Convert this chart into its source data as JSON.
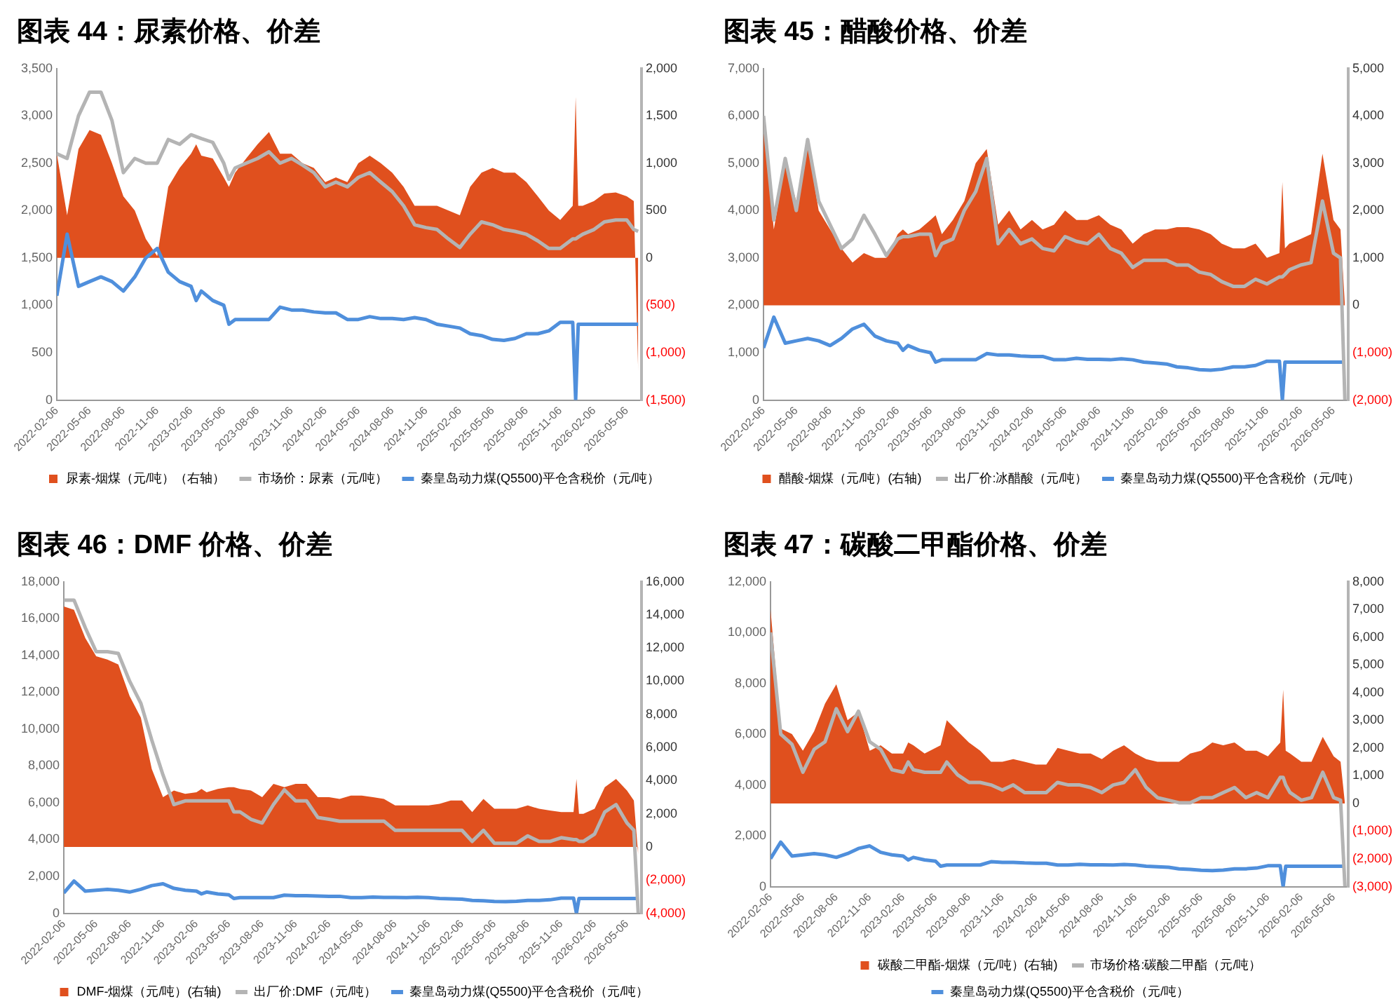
{
  "chart_data": [
    {
      "type": "line",
      "title": "图表 44：尿素价格、价差",
      "legend": "bottom",
      "x": [
        "2022-02-06",
        "2022-03-06",
        "2022-04-06",
        "2022-05-06",
        "2022-06-06",
        "2022-07-06",
        "2022-08-06",
        "2022-09-06",
        "2022-10-06",
        "2022-11-06",
        "2022-12-06",
        "2023-01-06",
        "2023-02-06",
        "2023-02-20",
        "2023-03-06",
        "2023-04-06",
        "2023-05-06",
        "2023-05-20",
        "2023-06-06",
        "2023-07-06",
        "2023-08-06",
        "2023-09-06",
        "2023-10-06",
        "2023-11-06",
        "2023-12-06",
        "2024-01-06",
        "2024-02-06",
        "2024-03-06",
        "2024-04-06",
        "2024-05-06",
        "2024-06-06",
        "2024-07-06",
        "2024-08-06",
        "2024-09-06",
        "2024-10-06",
        "2024-11-06",
        "2024-12-06",
        "2025-01-06",
        "2025-02-06",
        "2025-03-06",
        "2025-04-06",
        "2025-05-06",
        "2025-06-06",
        "2025-07-06",
        "2025-08-06",
        "2025-09-06",
        "2025-10-06",
        "2025-11-06",
        "2025-12-10",
        "2025-12-18",
        "2025-12-25",
        "2026-01-06",
        "2026-02-06",
        "2026-03-06",
        "2026-04-06",
        "2026-05-06",
        "2026-05-25",
        "2026-06-06"
      ],
      "xlim": [
        "2022-02-06",
        "2026-06-15"
      ],
      "xticks": [
        "2022-02-06",
        "2022-05-06",
        "2022-08-06",
        "2022-11-06",
        "2023-02-06",
        "2023-05-06",
        "2023-08-06",
        "2023-11-06",
        "2024-02-06",
        "2024-05-06",
        "2024-08-06",
        "2024-11-06",
        "2025-02-06",
        "2025-05-06",
        "2025-08-06",
        "2025-11-06",
        "2026-02-06",
        "2026-05-06"
      ],
      "ylim": [
        0,
        3500
      ],
      "yticks": [
        {
          "value": 0,
          "label": "0"
        },
        {
          "value": 500,
          "label": "500"
        },
        {
          "value": 1000,
          "label": "1,000"
        },
        {
          "value": 1500,
          "label": "1,500"
        },
        {
          "value": 2000,
          "label": "2,000"
        },
        {
          "value": 2500,
          "label": "2,500"
        },
        {
          "value": 3000,
          "label": "3,000"
        },
        {
          "value": 3500,
          "label": "3,500"
        }
      ],
      "y2lim": [
        -1500,
        2000
      ],
      "y2ticks": [
        {
          "value": -1500,
          "label": "(1,500)"
        },
        {
          "value": -1000,
          "label": "(1,000)"
        },
        {
          "value": -500,
          "label": "(500)"
        },
        {
          "value": 0,
          "label": "0"
        },
        {
          "value": 500,
          "label": "500"
        },
        {
          "value": 1000,
          "label": "1,000"
        },
        {
          "value": 1500,
          "label": "1,500"
        },
        {
          "value": 2000,
          "label": "2,000"
        }
      ],
      "series": [
        {
          "name": "尿素-烟煤（元/吨）（右轴）",
          "type": "area",
          "axis": "y2",
          "color": "#e0501e",
          "values": [
            1100,
            450,
            1150,
            1350,
            1300,
            1000,
            650,
            500,
            200,
            20,
            750,
            950,
            1100,
            1200,
            1080,
            1050,
            850,
            750,
            900,
            1050,
            1200,
            1330,
            1100,
            1100,
            1000,
            950,
            800,
            850,
            800,
            1000,
            1080,
            1000,
            900,
            750,
            550,
            550,
            550,
            500,
            450,
            750,
            900,
            950,
            900,
            900,
            800,
            650,
            500,
            400,
            550,
            1700,
            550,
            550,
            600,
            680,
            690,
            650,
            600,
            -1200
          ]
        },
        {
          "name": "市场价：尿素（元/吨）",
          "type": "line",
          "color": "#b4b4b4",
          "values": [
            2600,
            2550,
            3000,
            3250,
            3250,
            2950,
            2400,
            2550,
            2500,
            2500,
            2750,
            2700,
            2800,
            2780,
            2760,
            2720,
            2500,
            2330,
            2450,
            2500,
            2550,
            2620,
            2500,
            2550,
            2480,
            2400,
            2250,
            2300,
            2250,
            2350,
            2400,
            2300,
            2200,
            2050,
            1850,
            1820,
            1800,
            1700,
            1610,
            1750,
            1880,
            1850,
            1800,
            1780,
            1750,
            1680,
            1600,
            1600,
            1700,
            1700,
            1720,
            1750,
            1800,
            1880,
            1900,
            1900,
            1800,
            1780
          ]
        },
        {
          "name": "秦皇岛动力煤(Q5500)平仓含税价（元/吨）",
          "type": "line",
          "color": "#4f8fdc",
          "values": [
            1100,
            1750,
            1200,
            1250,
            1300,
            1250,
            1150,
            1300,
            1500,
            1600,
            1350,
            1250,
            1200,
            1050,
            1150,
            1050,
            1000,
            800,
            850,
            850,
            850,
            850,
            980,
            950,
            950,
            930,
            920,
            920,
            850,
            850,
            880,
            860,
            860,
            850,
            870,
            850,
            800,
            780,
            760,
            700,
            680,
            640,
            630,
            650,
            700,
            700,
            730,
            820,
            820,
            0,
            800,
            800,
            800,
            800,
            800,
            800,
            800,
            800
          ]
        }
      ]
    },
    {
      "type": "line",
      "title": "图表 45：醋酸价格、价差",
      "legend": "bottom",
      "x": [
        "2022-02-06",
        "2022-03-06",
        "2022-04-06",
        "2022-05-06",
        "2022-06-06",
        "2022-07-06",
        "2022-08-06",
        "2022-09-06",
        "2022-10-06",
        "2022-11-06",
        "2022-12-06",
        "2023-01-06",
        "2023-02-06",
        "2023-02-20",
        "2023-03-06",
        "2023-04-06",
        "2023-05-06",
        "2023-05-20",
        "2023-06-06",
        "2023-07-06",
        "2023-08-06",
        "2023-09-06",
        "2023-10-06",
        "2023-11-06",
        "2023-12-06",
        "2024-01-06",
        "2024-02-06",
        "2024-03-06",
        "2024-04-06",
        "2024-05-06",
        "2024-06-06",
        "2024-07-06",
        "2024-08-06",
        "2024-09-06",
        "2024-10-06",
        "2024-11-06",
        "2024-12-06",
        "2025-01-06",
        "2025-02-06",
        "2025-03-06",
        "2025-04-06",
        "2025-05-06",
        "2025-06-06",
        "2025-07-06",
        "2025-08-06",
        "2025-09-06",
        "2025-10-06",
        "2025-11-06",
        "2025-12-10",
        "2025-12-18",
        "2025-12-25",
        "2026-01-06",
        "2026-02-06",
        "2026-03-06",
        "2026-04-06",
        "2026-05-06",
        "2026-05-25",
        "2026-06-06"
      ],
      "xlim": [
        "2022-02-06",
        "2026-06-15"
      ],
      "xticks": [
        "2022-02-06",
        "2022-05-06",
        "2022-08-06",
        "2022-11-06",
        "2023-02-06",
        "2023-05-06",
        "2023-08-06",
        "2023-11-06",
        "2024-02-06",
        "2024-05-06",
        "2024-08-06",
        "2024-11-06",
        "2025-02-06",
        "2025-05-06",
        "2025-08-06",
        "2025-11-06",
        "2026-02-06",
        "2026-05-06"
      ],
      "ylim": [
        0,
        7000
      ],
      "yticks": [
        {
          "value": 0,
          "label": "0"
        },
        {
          "value": 1000,
          "label": "1,000"
        },
        {
          "value": 2000,
          "label": "2,000"
        },
        {
          "value": 3000,
          "label": "3,000"
        },
        {
          "value": 4000,
          "label": "4,000"
        },
        {
          "value": 5000,
          "label": "5,000"
        },
        {
          "value": 6000,
          "label": "6,000"
        },
        {
          "value": 7000,
          "label": "7,000"
        }
      ],
      "y2lim": [
        -2000,
        5000
      ],
      "y2ticks": [
        {
          "value": -2000,
          "label": "(2,000)"
        },
        {
          "value": -1000,
          "label": "(1,000)"
        },
        {
          "value": 0,
          "label": "0"
        },
        {
          "value": 1000,
          "label": "1,000"
        },
        {
          "value": 2000,
          "label": "2,000"
        },
        {
          "value": 3000,
          "label": "3,000"
        },
        {
          "value": 4000,
          "label": "4,000"
        },
        {
          "value": 5000,
          "label": "5,000"
        }
      ],
      "series": [
        {
          "name": "醋酸-烟煤（元/吨）(右轴)",
          "type": "area",
          "axis": "y2",
          "color": "#e0501e",
          "values": [
            3900,
            1600,
            3000,
            2200,
            3400,
            2000,
            1600,
            1200,
            900,
            1100,
            1000,
            1000,
            1500,
            1600,
            1500,
            1600,
            1800,
            1900,
            1500,
            1800,
            2200,
            3000,
            3300,
            1700,
            2000,
            1600,
            1800,
            1600,
            1700,
            2000,
            1800,
            1800,
            1900,
            1700,
            1600,
            1300,
            1500,
            1600,
            1600,
            1650,
            1650,
            1600,
            1500,
            1300,
            1200,
            1200,
            1300,
            1000,
            1100,
            2600,
            1200,
            1300,
            1400,
            1500,
            3200,
            1800,
            1600,
            0
          ]
        },
        {
          "name": "出厂价:冰醋酸（元/吨）",
          "type": "line",
          "color": "#b4b4b4",
          "values": [
            6000,
            3800,
            5100,
            4000,
            5500,
            4200,
            3700,
            3200,
            3400,
            3900,
            3500,
            3050,
            3400,
            3450,
            3450,
            3500,
            3500,
            3050,
            3300,
            3400,
            4000,
            4400,
            5100,
            3300,
            3600,
            3300,
            3400,
            3200,
            3150,
            3450,
            3350,
            3300,
            3500,
            3200,
            3100,
            2800,
            2950,
            2950,
            2950,
            2850,
            2850,
            2700,
            2650,
            2500,
            2400,
            2400,
            2550,
            2450,
            2600,
            2600,
            2650,
            2750,
            2850,
            2900,
            4200,
            3100,
            3000,
            0
          ]
        },
        {
          "name": "秦皇岛动力煤(Q5500)平仓含税价（元/吨）",
          "type": "line",
          "color": "#4f8fdc",
          "values": [
            1100,
            1750,
            1200,
            1250,
            1300,
            1250,
            1150,
            1300,
            1500,
            1600,
            1350,
            1250,
            1200,
            1050,
            1150,
            1050,
            1000,
            800,
            850,
            850,
            850,
            850,
            980,
            950,
            950,
            930,
            920,
            920,
            850,
            850,
            880,
            860,
            860,
            850,
            870,
            850,
            800,
            780,
            760,
            700,
            680,
            640,
            630,
            650,
            700,
            700,
            730,
            820,
            820,
            0,
            800,
            800,
            800,
            800,
            800,
            800,
            800,
            800
          ]
        }
      ]
    },
    {
      "type": "line",
      "title": "图表 46：DMF 价格、价差",
      "legend": "bottom",
      "x": [
        "2022-02-06",
        "2022-03-06",
        "2022-04-06",
        "2022-05-06",
        "2022-06-06",
        "2022-07-06",
        "2022-08-06",
        "2022-09-06",
        "2022-10-06",
        "2022-11-06",
        "2022-12-06",
        "2023-01-06",
        "2023-02-06",
        "2023-02-20",
        "2023-03-06",
        "2023-04-06",
        "2023-05-06",
        "2023-05-20",
        "2023-06-06",
        "2023-07-06",
        "2023-08-06",
        "2023-09-06",
        "2023-10-06",
        "2023-11-06",
        "2023-12-06",
        "2024-01-06",
        "2024-02-06",
        "2024-03-06",
        "2024-04-06",
        "2024-05-06",
        "2024-06-06",
        "2024-07-06",
        "2024-08-06",
        "2024-09-06",
        "2024-10-06",
        "2024-11-06",
        "2024-12-06",
        "2025-01-06",
        "2025-02-06",
        "2025-03-06",
        "2025-04-06",
        "2025-05-06",
        "2025-06-06",
        "2025-07-06",
        "2025-08-06",
        "2025-09-06",
        "2025-10-06",
        "2025-11-06",
        "2025-12-10",
        "2025-12-18",
        "2025-12-25",
        "2026-01-06",
        "2026-02-06",
        "2026-03-06",
        "2026-04-06",
        "2026-05-06",
        "2026-05-25",
        "2026-06-06"
      ],
      "xlim": [
        "2022-02-06",
        "2026-06-15"
      ],
      "xticks": [
        "2022-02-06",
        "2022-05-06",
        "2022-08-06",
        "2022-11-06",
        "2023-02-06",
        "2023-05-06",
        "2023-08-06",
        "2023-11-06",
        "2024-02-06",
        "2024-05-06",
        "2024-08-06",
        "2024-11-06",
        "2025-02-06",
        "2025-05-06",
        "2025-08-06",
        "2025-11-06",
        "2026-02-06",
        "2026-05-06"
      ],
      "ylim": [
        0,
        18000
      ],
      "yticks": [
        {
          "value": 0,
          "label": "0"
        },
        {
          "value": 2000,
          "label": "2,000"
        },
        {
          "value": 4000,
          "label": "4,000"
        },
        {
          "value": 6000,
          "label": "6,000"
        },
        {
          "value": 8000,
          "label": "8,000"
        },
        {
          "value": 10000,
          "label": "10,000"
        },
        {
          "value": 12000,
          "label": "12,000"
        },
        {
          "value": 14000,
          "label": "14,000"
        },
        {
          "value": 16000,
          "label": "16,000"
        },
        {
          "value": 18000,
          "label": "18,000"
        }
      ],
      "y2lim": [
        -4000,
        16000
      ],
      "y2ticks": [
        {
          "value": -4000,
          "label": "(4,000)"
        },
        {
          "value": -2000,
          "label": "(2,000)"
        },
        {
          "value": 0,
          "label": "0"
        },
        {
          "value": 2000,
          "label": "2,000"
        },
        {
          "value": 4000,
          "label": "4,000"
        },
        {
          "value": 6000,
          "label": "6,000"
        },
        {
          "value": 8000,
          "label": "8,000"
        },
        {
          "value": 10000,
          "label": "10,000"
        },
        {
          "value": 12000,
          "label": "12,000"
        },
        {
          "value": 14000,
          "label": "14,000"
        },
        {
          "value": 16000,
          "label": "16,000"
        }
      ],
      "series": [
        {
          "name": "DMF-烟煤（元/吨）(右轴)",
          "type": "area",
          "axis": "y2",
          "color": "#e0501e",
          "values": [
            14500,
            14300,
            12600,
            11500,
            11300,
            11000,
            9100,
            7800,
            4700,
            3000,
            3400,
            3200,
            3300,
            3500,
            3300,
            3500,
            3600,
            3600,
            3500,
            3400,
            3000,
            3800,
            3600,
            3800,
            3800,
            3000,
            3000,
            2900,
            3100,
            3100,
            3000,
            2900,
            2500,
            2500,
            2500,
            2500,
            2600,
            2800,
            2800,
            2100,
            2900,
            2300,
            2300,
            2300,
            2500,
            2300,
            2200,
            2100,
            2100,
            4100,
            2000,
            2000,
            2300,
            3600,
            4100,
            3400,
            2800,
            -500
          ]
        },
        {
          "name": "出厂价:DMF（元/吨）",
          "type": "line",
          "color": "#b4b4b4",
          "values": [
            17000,
            17000,
            15500,
            14200,
            14200,
            14100,
            12600,
            11400,
            9400,
            7500,
            5900,
            6100,
            6100,
            6100,
            6100,
            6100,
            6100,
            5500,
            5500,
            5100,
            4900,
            5900,
            6700,
            6100,
            6100,
            5200,
            5100,
            5000,
            5000,
            5000,
            5000,
            5000,
            4500,
            4500,
            4500,
            4500,
            4500,
            4500,
            4500,
            3900,
            4500,
            3800,
            3800,
            3800,
            4200,
            3900,
            3900,
            4100,
            4000,
            4000,
            3900,
            3900,
            4300,
            5500,
            5900,
            4900,
            4500,
            0
          ]
        },
        {
          "name": "秦皇岛动力煤(Q5500)平仓含税价（元/吨）",
          "type": "line",
          "color": "#4f8fdc",
          "values": [
            1100,
            1750,
            1200,
            1250,
            1300,
            1250,
            1150,
            1300,
            1500,
            1600,
            1350,
            1250,
            1200,
            1050,
            1150,
            1050,
            1000,
            800,
            850,
            850,
            850,
            850,
            980,
            950,
            950,
            930,
            920,
            920,
            850,
            850,
            880,
            860,
            860,
            850,
            870,
            850,
            800,
            780,
            760,
            700,
            680,
            640,
            630,
            650,
            700,
            700,
            730,
            820,
            820,
            0,
            800,
            800,
            800,
            800,
            800,
            800,
            800,
            800
          ]
        }
      ]
    },
    {
      "type": "line",
      "title": "图表 47：碳酸二甲酯价格、价差",
      "legend": "bottom",
      "x": [
        "2022-02-06",
        "2022-03-06",
        "2022-04-06",
        "2022-05-06",
        "2022-06-06",
        "2022-07-06",
        "2022-08-06",
        "2022-09-06",
        "2022-10-06",
        "2022-11-06",
        "2022-12-06",
        "2023-01-06",
        "2023-02-06",
        "2023-02-20",
        "2023-03-06",
        "2023-04-06",
        "2023-05-06",
        "2023-05-20",
        "2023-06-06",
        "2023-07-06",
        "2023-08-06",
        "2023-09-06",
        "2023-10-06",
        "2023-11-06",
        "2023-12-06",
        "2024-01-06",
        "2024-02-06",
        "2024-03-06",
        "2024-04-06",
        "2024-05-06",
        "2024-06-06",
        "2024-07-06",
        "2024-08-06",
        "2024-09-06",
        "2024-10-06",
        "2024-11-06",
        "2024-12-06",
        "2025-01-06",
        "2025-02-06",
        "2025-03-06",
        "2025-04-06",
        "2025-05-06",
        "2025-06-06",
        "2025-07-06",
        "2025-08-06",
        "2025-09-06",
        "2025-10-06",
        "2025-11-06",
        "2025-12-10",
        "2025-12-18",
        "2025-12-25",
        "2026-01-06",
        "2026-02-06",
        "2026-03-06",
        "2026-04-06",
        "2026-05-06",
        "2026-05-25",
        "2026-06-06"
      ],
      "xlim": [
        "2022-02-06",
        "2026-06-15"
      ],
      "xticks": [
        "2022-02-06",
        "2022-05-06",
        "2022-08-06",
        "2022-11-06",
        "2023-02-06",
        "2023-05-06",
        "2023-08-06",
        "2023-11-06",
        "2024-02-06",
        "2024-05-06",
        "2024-08-06",
        "2024-11-06",
        "2025-02-06",
        "2025-05-06",
        "2025-08-06",
        "2025-11-06",
        "2026-02-06",
        "2026-05-06"
      ],
      "ylim": [
        0,
        12000
      ],
      "yticks": [
        {
          "value": 0,
          "label": "0"
        },
        {
          "value": 2000,
          "label": "2,000"
        },
        {
          "value": 4000,
          "label": "4,000"
        },
        {
          "value": 6000,
          "label": "6,000"
        },
        {
          "value": 8000,
          "label": "8,000"
        },
        {
          "value": 10000,
          "label": "10,000"
        },
        {
          "value": 12000,
          "label": "12,000"
        }
      ],
      "y2lim": [
        -3000,
        8000
      ],
      "y2ticks": [
        {
          "value": -3000,
          "label": "(3,000)"
        },
        {
          "value": -2000,
          "label": "(2,000)"
        },
        {
          "value": -1000,
          "label": "(1,000)"
        },
        {
          "value": 0,
          "label": "0"
        },
        {
          "value": 1000,
          "label": "1,000"
        },
        {
          "value": 2000,
          "label": "2,000"
        },
        {
          "value": 3000,
          "label": "3,000"
        },
        {
          "value": 4000,
          "label": "4,000"
        },
        {
          "value": 5000,
          "label": "5,000"
        },
        {
          "value": 6000,
          "label": "6,000"
        },
        {
          "value": 7000,
          "label": "7,000"
        },
        {
          "value": 8000,
          "label": "8,000"
        }
      ],
      "series": [
        {
          "name": "碳酸二甲酯-烟煤（元/吨）(右轴)",
          "type": "area",
          "axis": "y2",
          "color": "#e0501e",
          "values": [
            7000,
            2700,
            2500,
            1900,
            2600,
            3600,
            4300,
            3000,
            3300,
            1900,
            2100,
            1800,
            1800,
            2200,
            2100,
            1800,
            2000,
            2100,
            3000,
            2600,
            2200,
            1900,
            1500,
            1500,
            1600,
            1500,
            1400,
            1400,
            2000,
            1900,
            1800,
            1800,
            1600,
            1900,
            2100,
            1800,
            1600,
            1500,
            1500,
            1500,
            1800,
            1900,
            2200,
            2100,
            2200,
            1900,
            1900,
            1700,
            2200,
            4100,
            1900,
            1800,
            1500,
            1500,
            2400,
            1700,
            1500,
            0
          ]
        },
        {
          "name": "市场价格:碳酸二甲酯（元/吨）",
          "type": "line",
          "color": "#b4b4b4",
          "values": [
            10000,
            6000,
            5600,
            4500,
            5400,
            5700,
            7000,
            6100,
            6900,
            5700,
            5400,
            4600,
            4500,
            4900,
            4600,
            4500,
            4500,
            4500,
            4900,
            4400,
            4100,
            4100,
            4000,
            3800,
            4000,
            3700,
            3700,
            3700,
            4100,
            4000,
            4000,
            3900,
            3700,
            4000,
            4100,
            4600,
            3900,
            3500,
            3400,
            3300,
            3300,
            3500,
            3500,
            3700,
            3900,
            3500,
            3700,
            3500,
            4300,
            4300,
            4000,
            3700,
            3400,
            3500,
            4500,
            3500,
            3400,
            0
          ]
        },
        {
          "name": "秦皇岛动力煤(Q5500)平仓含税价（元/吨）",
          "type": "line",
          "color": "#4f8fdc",
          "values": [
            1100,
            1750,
            1200,
            1250,
            1300,
            1250,
            1150,
            1300,
            1500,
            1600,
            1350,
            1250,
            1200,
            1050,
            1150,
            1050,
            1000,
            800,
            850,
            850,
            850,
            850,
            980,
            950,
            950,
            930,
            920,
            920,
            850,
            850,
            880,
            860,
            860,
            850,
            870,
            850,
            800,
            780,
            760,
            700,
            680,
            640,
            630,
            650,
            700,
            700,
            730,
            820,
            820,
            0,
            800,
            800,
            800,
            800,
            800,
            800,
            800,
            800
          ]
        }
      ]
    }
  ]
}
